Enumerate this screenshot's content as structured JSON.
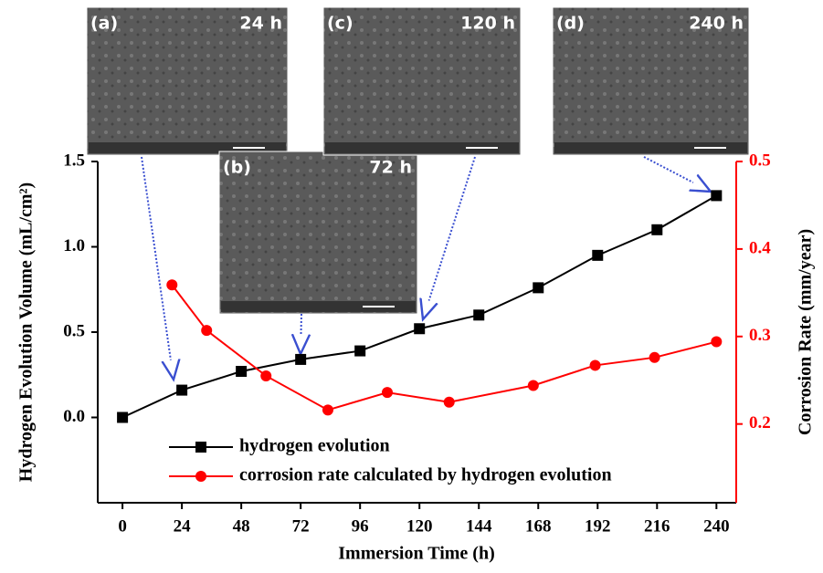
{
  "chart_data": {
    "type": "line",
    "xlabel": "Immersion Time (h)",
    "ylabel": "Hydrogen Evolution Volume (mL/cm²)",
    "y2label": "Corrosion Rate (mm/year)",
    "xlim": [
      -10,
      248
    ],
    "xticks": [
      0,
      24,
      48,
      72,
      96,
      120,
      144,
      168,
      192,
      216,
      240
    ],
    "ylim": [
      -0.5,
      1.5
    ],
    "yticks": [
      {
        "value": 0,
        "label": "0.0"
      },
      {
        "value": 0.5,
        "label": "0.5"
      },
      {
        "value": 1,
        "label": "1.0"
      },
      {
        "value": 1.5,
        "label": "1.5"
      }
    ],
    "y2lim": [
      0.11,
      0.5
    ],
    "y2ticks": [
      0.2,
      0.3,
      0.4,
      0.5
    ],
    "y2color": "#ff0000",
    "series": [
      {
        "name": "hydrogen evolution",
        "color": "#000000",
        "marker": "square",
        "x": [
          0,
          24,
          48,
          72,
          96,
          120,
          144,
          168,
          192,
          216,
          240
        ],
        "values": [
          0.0,
          0.16,
          0.27,
          0.34,
          0.39,
          0.52,
          0.6,
          0.76,
          0.95,
          1.1,
          1.3
        ]
      },
      {
        "name": "corrosion rate calculated by hydrogen evolution",
        "color": "#ff0000",
        "marker": "circle",
        "axis": "y2",
        "x": [
          20,
          34,
          58,
          83,
          107,
          132,
          166,
          191,
          215,
          240
        ],
        "values": [
          0.359,
          0.307,
          0.255,
          0.216,
          0.236,
          0.225,
          0.244,
          0.267,
          0.276,
          0.294
        ]
      }
    ],
    "insets": [
      {
        "label": "(a)",
        "time": "24 h"
      },
      {
        "label": "(b)",
        "time": "72 h"
      },
      {
        "label": "(c)",
        "time": "120 h"
      },
      {
        "label": "(d)",
        "time": "240 h"
      }
    ]
  }
}
